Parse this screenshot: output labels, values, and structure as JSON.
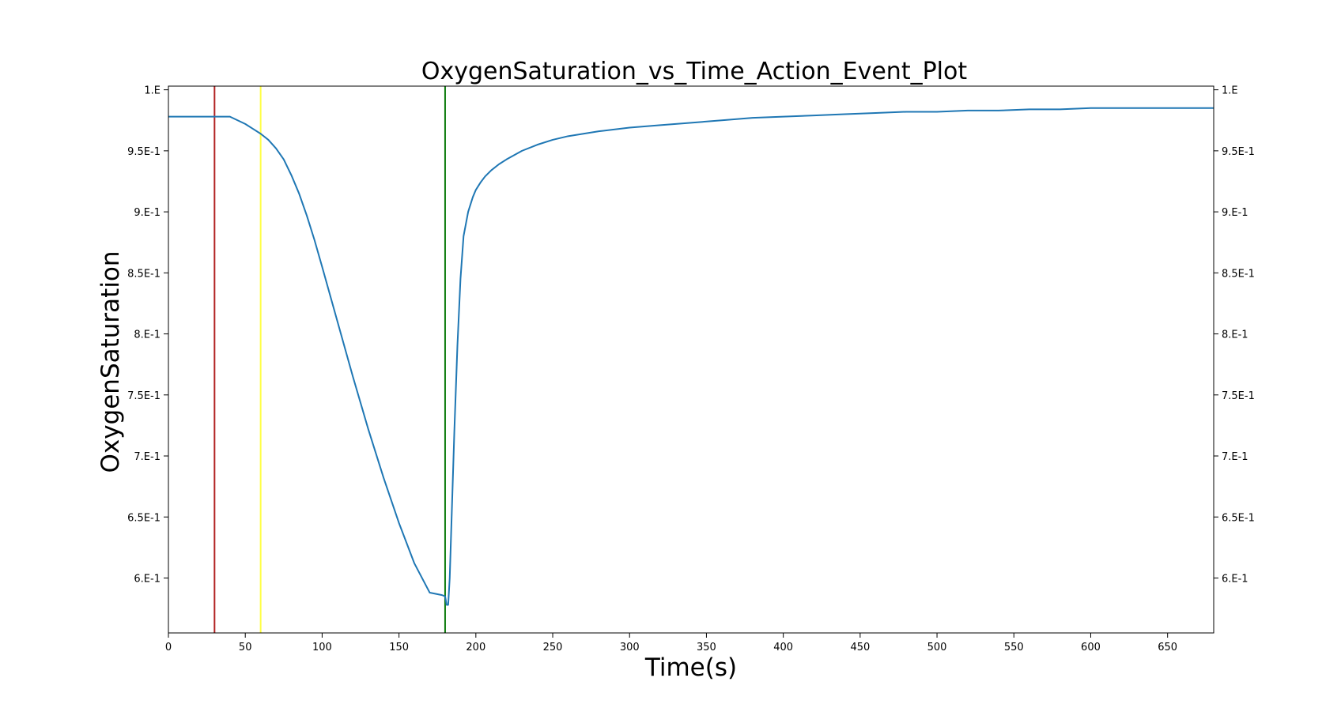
{
  "chart_data": {
    "type": "line",
    "title": "OxygenSaturation_vs_Time_Action_Event_Plot",
    "xlabel": "Time(s)",
    "ylabel": "OxygenSaturation",
    "xlim": [
      0,
      680
    ],
    "ylim": [
      0.555,
      1.003
    ],
    "x_ticks": [
      0,
      50,
      100,
      150,
      200,
      250,
      300,
      350,
      400,
      450,
      500,
      550,
      600,
      650
    ],
    "x_tick_labels": [
      "0",
      "50",
      "100",
      "150",
      "200",
      "250",
      "300",
      "350",
      "400",
      "450",
      "500",
      "550",
      "600",
      "650"
    ],
    "y_ticks": [
      0.6,
      0.65,
      0.7,
      0.75,
      0.8,
      0.85,
      0.9,
      0.95,
      1.0
    ],
    "y_tick_labels": [
      "6.E-1",
      "6.5E-1",
      "7.E-1",
      "7.5E-1",
      "8.E-1",
      "8.5E-1",
      "9.E-1",
      "9.5E-1",
      "1.E"
    ],
    "right_axis_ticks": true,
    "grid": false,
    "legend": false,
    "event_lines": [
      {
        "x": 30,
        "color": "#b22222"
      },
      {
        "x": 60,
        "color": "#ffff44"
      },
      {
        "x": 180,
        "color": "#0a7a0a"
      }
    ],
    "series": [
      {
        "color": "#1f77b4",
        "x": [
          0,
          40,
          45,
          50,
          55,
          60,
          65,
          70,
          75,
          80,
          85,
          90,
          95,
          100,
          110,
          120,
          130,
          140,
          150,
          160,
          170,
          178,
          180,
          181,
          182,
          183,
          184,
          186,
          188,
          190,
          192,
          195,
          198,
          200,
          203,
          206,
          210,
          215,
          220,
          230,
          240,
          250,
          260,
          270,
          280,
          300,
          320,
          340,
          360,
          380,
          400,
          420,
          440,
          460,
          480,
          500,
          520,
          540,
          560,
          580,
          600,
          630,
          660,
          680
        ],
        "y": [
          0.978,
          0.978,
          0.975,
          0.972,
          0.968,
          0.964,
          0.959,
          0.952,
          0.943,
          0.93,
          0.915,
          0.897,
          0.877,
          0.855,
          0.81,
          0.765,
          0.722,
          0.682,
          0.645,
          0.612,
          0.588,
          0.586,
          0.585,
          0.578,
          0.578,
          0.6,
          0.64,
          0.72,
          0.79,
          0.845,
          0.88,
          0.9,
          0.912,
          0.918,
          0.924,
          0.929,
          0.934,
          0.939,
          0.943,
          0.95,
          0.955,
          0.959,
          0.962,
          0.964,
          0.966,
          0.969,
          0.971,
          0.973,
          0.975,
          0.977,
          0.978,
          0.979,
          0.98,
          0.981,
          0.982,
          0.982,
          0.983,
          0.983,
          0.984,
          0.984,
          0.985,
          0.985,
          0.985,
          0.985
        ]
      }
    ]
  }
}
